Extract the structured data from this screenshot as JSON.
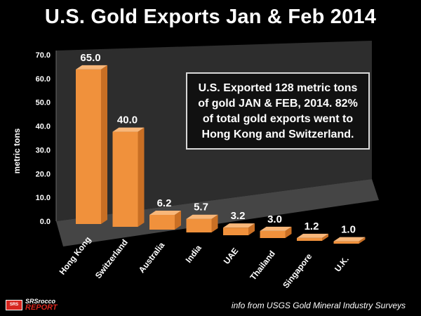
{
  "chart_data": {
    "type": "bar",
    "title": "U.S. Gold Exports Jan & Feb 2014",
    "xlabel": "",
    "ylabel": "metric tons",
    "ylim": [
      0,
      70
    ],
    "yticks": [
      "0.0",
      "10.0",
      "20.0",
      "30.0",
      "40.0",
      "50.0",
      "60.0",
      "70.0"
    ],
    "categories": [
      "Hong Kong",
      "Switzerland",
      "Australia",
      "India",
      "UAE",
      "Thailand",
      "Singapore",
      "U.K."
    ],
    "values": [
      65.0,
      40.0,
      6.2,
      5.7,
      3.2,
      3.0,
      1.2,
      1.0
    ],
    "value_labels": [
      "65.0",
      "40.0",
      "6.2",
      "5.7",
      "3.2",
      "3.0",
      "1.2",
      "1.0"
    ],
    "annotation": "U.S. Exported 128 metric tons of gold JAN & FEB, 2014.  82% of total gold exports went to Hong Kong and Switzerland.",
    "source": "info from USGS Gold Mineral Industry Surveys",
    "colors": {
      "bar_front": "#f0913c",
      "bar_top": "#f8b77a",
      "bar_side": "#c96f24",
      "background": "#000000",
      "wall": "#2d2d2d",
      "floor": "#454545",
      "text": "#ffffff"
    }
  },
  "logo": {
    "mark": "SRS",
    "top": "SRSrocco",
    "bottom": "REPORT"
  }
}
